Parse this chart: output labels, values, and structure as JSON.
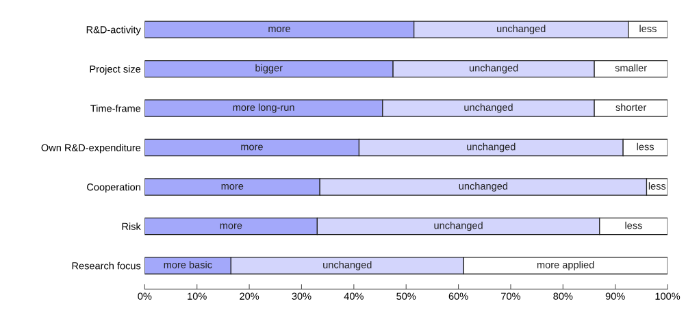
{
  "chart_data": {
    "type": "bar",
    "orientation": "horizontal",
    "stacked": true,
    "categories": [
      "R&D-activity",
      "Project size",
      "Time-frame",
      "Own R&D-expenditure",
      "Cooperation",
      "Risk",
      "Research focus"
    ],
    "series": [
      {
        "color": "#a3a8fa",
        "values": [
          51.5,
          47.5,
          45.5,
          41,
          33.5,
          33,
          16.5
        ],
        "value_labels": [
          "more",
          "bigger",
          "more long-run",
          "more",
          "more",
          "more",
          "more basic"
        ]
      },
      {
        "color": "#d3d5fc",
        "values": [
          41,
          38.5,
          40.5,
          50.5,
          62.5,
          54,
          44.5
        ],
        "value_labels": [
          "unchanged",
          "unchanged",
          "unchanged",
          "unchanged",
          "unchanged",
          "unchanged",
          "unchanged"
        ]
      },
      {
        "color": "#ffffff",
        "values": [
          7.5,
          14,
          14,
          8.5,
          4,
          13,
          39
        ],
        "value_labels": [
          "less",
          "smaller",
          "shorter",
          "less",
          "less",
          "less",
          "more applied"
        ]
      }
    ],
    "xlim": [
      0,
      100
    ],
    "xticks": [
      {
        "value": 0,
        "label": "0%"
      },
      {
        "value": 10,
        "label": "10%"
      },
      {
        "value": 20,
        "label": "20%"
      },
      {
        "value": 30,
        "label": "30%"
      },
      {
        "value": 40,
        "label": "40%"
      },
      {
        "value": 50,
        "label": "50%"
      },
      {
        "value": 60,
        "label": "60%"
      },
      {
        "value": 70,
        "label": "70%"
      },
      {
        "value": 80,
        "label": "80%"
      },
      {
        "value": 90,
        "label": "90%"
      },
      {
        "value": 100,
        "label": "100%"
      }
    ],
    "grid": false,
    "legend": false
  }
}
